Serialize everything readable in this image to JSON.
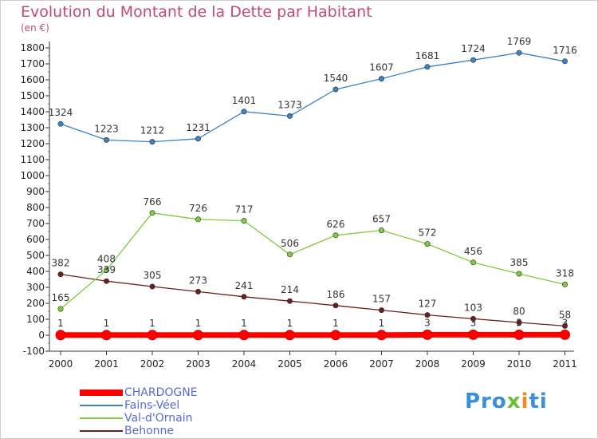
{
  "chart_data": {
    "type": "line",
    "title": "Evolution du Montant de la Dette par Habitant",
    "subtitle": "(en €)",
    "x": [
      "2000",
      "2001",
      "2002",
      "2003",
      "2004",
      "2005",
      "2006",
      "2007",
      "2008",
      "2009",
      "2010",
      "2011"
    ],
    "ylim": [
      -100,
      1800
    ],
    "yticks": [
      -100,
      0,
      100,
      200,
      300,
      400,
      500,
      600,
      700,
      800,
      900,
      1000,
      1100,
      1200,
      1300,
      1400,
      1500,
      1600,
      1700,
      1800
    ],
    "grid": false,
    "legend_position": "bottom-left",
    "series": [
      {
        "name": "CHARDOGNE",
        "color": "#ff0000",
        "values": [
          1,
          1,
          1,
          1,
          1,
          1,
          1,
          1,
          3,
          3,
          3,
          3
        ],
        "labels": [
          "1",
          "1",
          "1",
          "1",
          "1",
          "1",
          "1",
          "1",
          "3",
          "3",
          "3",
          "3"
        ]
      },
      {
        "name": "Fains-Véel",
        "color": "#3b82c4",
        "values": [
          1324,
          1223,
          1212,
          1231,
          1401,
          1373,
          1540,
          1607,
          1681,
          1724,
          1769,
          1716
        ],
        "labels": [
          "1324",
          "1223",
          "1212",
          "1231",
          "1401",
          "1373",
          "1540",
          "1607",
          "1681",
          "1724",
          "1769",
          "1716"
        ]
      },
      {
        "name": "Val-d'Ornain",
        "color": "#7ccc3c",
        "values": [
          165,
          408,
          766,
          726,
          717,
          506,
          626,
          657,
          572,
          456,
          385,
          318
        ],
        "labels": [
          "165",
          "408",
          "766",
          "726",
          "717",
          "506",
          "626",
          "657",
          "572",
          "456",
          "385",
          "318"
        ]
      },
      {
        "name": "Behonne",
        "color": "#6b1f1f",
        "values": [
          382,
          339,
          305,
          273,
          241,
          214,
          186,
          157,
          127,
          103,
          80,
          58
        ],
        "labels": [
          "382",
          "339",
          "305",
          "273",
          "241",
          "214",
          "186",
          "157",
          "127",
          "103",
          "80",
          "58"
        ]
      }
    ]
  },
  "logo": {
    "p1": "Pro",
    "p2": "x",
    "p3": "i",
    "p4": "ti"
  }
}
